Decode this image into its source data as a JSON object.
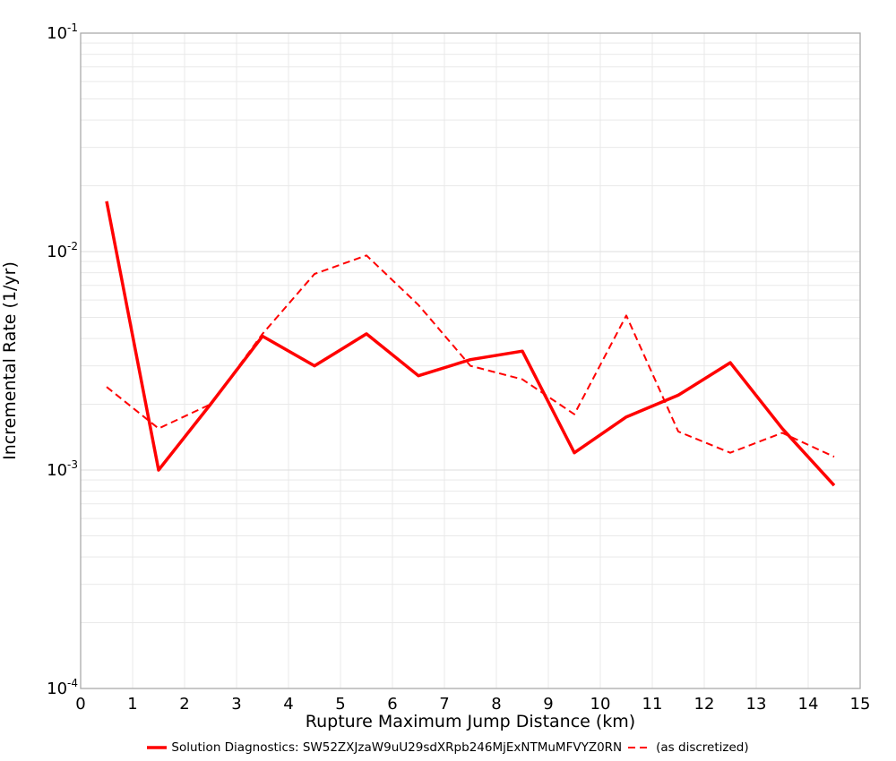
{
  "figure": {
    "background": "#ffffff",
    "accent_red": "#ff0000",
    "grid_minor_color": "#e9e9e9",
    "grid_major_color": "#dedede",
    "border_color": "#ababab"
  },
  "axes": {
    "xlabel": "Rupture Maximum Jump Distance (km)",
    "ylabel": "Incremental Rate (1/yr)",
    "xlim": [
      0,
      15
    ],
    "xtick_labels": [
      "0",
      "1",
      "2",
      "3",
      "4",
      "5",
      "6",
      "7",
      "8",
      "9",
      "10",
      "11",
      "12",
      "13",
      "14",
      "15"
    ],
    "xtick_values": [
      0,
      1,
      2,
      3,
      4,
      5,
      6,
      7,
      8,
      9,
      10,
      11,
      12,
      13,
      14,
      15
    ],
    "ytick_base": "10",
    "ytick_exponents": [
      -1,
      -2,
      -3,
      -4
    ],
    "yscale": "log"
  },
  "chart_data": {
    "type": "line",
    "title": "",
    "xlabel": "Rupture Maximum Jump Distance (km)",
    "ylabel": "Incremental Rate (1/yr)",
    "xlim": [
      0,
      15
    ],
    "ylim": [
      0.0001,
      0.1
    ],
    "yscale": "log",
    "grid": true,
    "legend_position": "bottom-center",
    "x": [
      0.5,
      1.5,
      2.5,
      3.5,
      4.5,
      5.5,
      6.5,
      7.5,
      8.5,
      9.5,
      10.5,
      11.5,
      12.5,
      13.5,
      14.5
    ],
    "series": [
      {
        "name": "Solution Diagnostics: SW52ZXJzaW9uU29sdXRpb246MjExNTMuMFVYZ0RN",
        "style": "solid",
        "color": "#ff0000",
        "width": 3.5,
        "values": [
          0.017,
          0.001,
          0.002,
          0.0041,
          0.003,
          0.0042,
          0.0027,
          0.0032,
          0.0035,
          0.0012,
          0.00175,
          0.0022,
          0.0031,
          0.00155,
          0.00085
        ]
      },
      {
        "name": "(as discretized)",
        "style": "dashed",
        "color": "#ff0000",
        "width": 2,
        "values": [
          0.0024,
          0.00155,
          0.002,
          0.0042,
          0.0079,
          0.0096,
          0.0057,
          0.003,
          0.0026,
          0.0018,
          0.0051,
          0.0015,
          0.0012,
          0.00148,
          0.00115
        ]
      }
    ]
  },
  "legend": {
    "items": [
      {
        "label": "Solution Diagnostics: SW52ZXJzaW9uU29sdXRpb246MjExNTMuMFVYZ0RN",
        "swatch": "solid-line"
      },
      {
        "label": "(as discretized)",
        "swatch": "dashed-line"
      }
    ]
  }
}
